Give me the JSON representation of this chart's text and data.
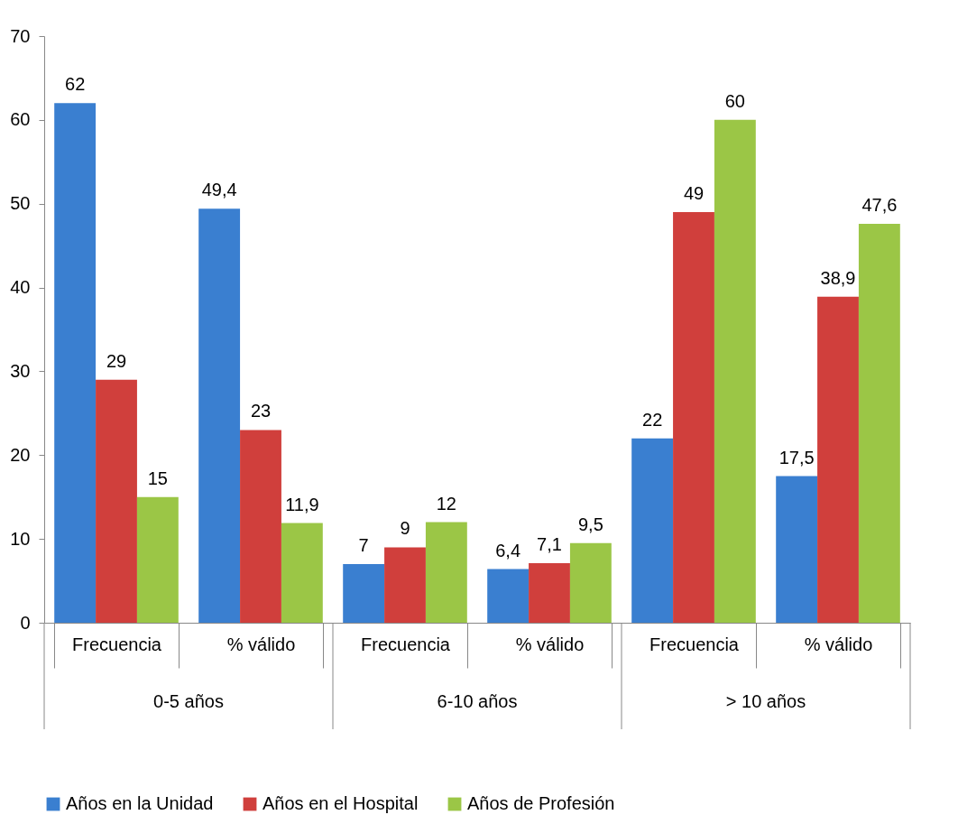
{
  "chart_data": {
    "type": "bar",
    "categories": [
      "Frecuencia",
      "% válido",
      "Frecuencia",
      "% válido",
      "Frecuencia",
      "% válido"
    ],
    "series": [
      {
        "name": "Años en la Unidad",
        "color": "#3a7fd0",
        "values": [
          62,
          49.4,
          7,
          6.4,
          22,
          17.5
        ],
        "value_labels": [
          "62",
          "49,4",
          "7",
          "6,4",
          "22",
          "17,5"
        ]
      },
      {
        "name": "Años en el Hospital",
        "color": "#d03f3c",
        "values": [
          29,
          23,
          9,
          7.1,
          49,
          38.9
        ],
        "value_labels": [
          "29",
          "23",
          "9",
          "7,1",
          "49",
          "38,9"
        ]
      },
      {
        "name": "Años de Profesión",
        "color": "#9bc646",
        "values": [
          15,
          11.9,
          12,
          9.5,
          60,
          47.6
        ],
        "value_labels": [
          "15",
          "11,9",
          "12",
          "9,5",
          "60",
          "47,6"
        ]
      }
    ],
    "annotations": [
      "0-5 años",
      "6-10 años",
      "> 10 años"
    ],
    "ylim": [
      0,
      70
    ],
    "yticks": [
      0,
      10,
      20,
      30,
      40,
      50,
      60,
      70
    ],
    "grid": false,
    "legend": "bottom"
  }
}
